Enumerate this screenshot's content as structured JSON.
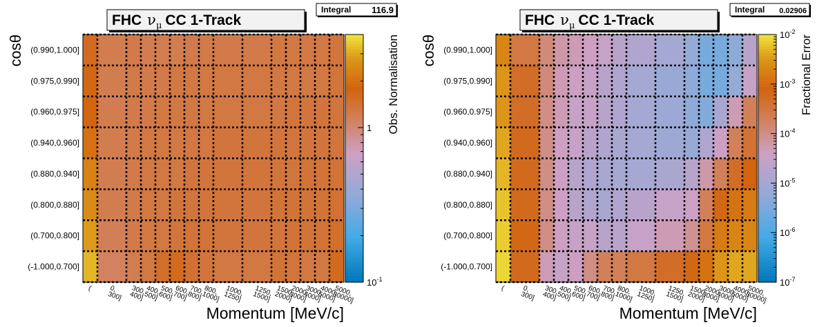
{
  "chart_data": [
    {
      "type": "heatmap",
      "title": "FHC",
      "title_symbol": "ν",
      "title_sub": "μ",
      "title_rest": "CC 1-Track",
      "stats_label": "Integral",
      "stats_value": "116.9",
      "xlabel": "Momentum [MeV/c]",
      "ylabel": "cosθ",
      "zlabel": "Obs. Normalisation",
      "zscale": "log",
      "zlim": [
        0.1,
        4
      ],
      "zticks": [
        {
          "label": "1",
          "value": 1
        },
        {
          "label": "10",
          "sup": "-1",
          "value": 0.1
        }
      ],
      "x_categories": [
        "(",
        "0, 300]",
        "300, 400]",
        "400, 500]",
        "500, 600]",
        "600, 700]",
        "700, 800]",
        "800, 1000]",
        "1000, 1250]",
        "1250, 1500]",
        "1500, 2000]",
        "2000, 3000]",
        "3000, 4000]",
        "4000, 5000]",
        "5000, 30000]"
      ],
      "x_labels": [
        [
          "("
        ],
        [
          "0,",
          "300]"
        ],
        [
          "300,",
          "400]"
        ],
        [
          "400,",
          "500]"
        ],
        [
          "500,",
          "600]"
        ],
        [
          "600,",
          "700]"
        ],
        [
          "700,",
          "800]"
        ],
        [
          "800,",
          "1000]"
        ],
        [
          "1000,",
          "1250]"
        ],
        [
          "1250,",
          "1500]"
        ],
        [
          "1500,",
          "2000]"
        ],
        [
          "2000,",
          "3000]"
        ],
        [
          "3000,",
          "4000]"
        ],
        [
          "4000,",
          "5000]"
        ],
        [
          "5000,",
          "30000]"
        ]
      ],
      "x_edges": [
        0,
        1,
        3,
        4,
        5,
        6,
        7,
        8,
        9,
        11,
        13,
        14,
        15,
        16,
        17,
        18
      ],
      "y_categories": [
        "(0.990,1.000]",
        "(0.975,0.990]",
        "(0.960,0.975]",
        "(0.940,0.960]",
        "(0.880,0.940]",
        "(0.800,0.880]",
        "(0.700,0.800]",
        "(-1.000,0.700]"
      ],
      "values": [
        [
          1.6,
          1.2,
          1.25,
          1.2,
          1.2,
          1.2,
          1.25,
          1.25,
          1.25,
          1.25,
          1.3,
          1.3,
          1.3,
          1.3,
          1.35
        ],
        [
          1.7,
          1.2,
          1.25,
          1.25,
          1.25,
          1.3,
          1.3,
          1.3,
          1.3,
          1.3,
          1.3,
          1.3,
          1.3,
          1.3,
          1.35
        ],
        [
          1.8,
          1.2,
          1.25,
          1.25,
          1.3,
          1.3,
          1.3,
          1.3,
          1.3,
          1.3,
          1.3,
          1.35,
          1.35,
          1.35,
          1.35
        ],
        [
          2.0,
          1.2,
          1.25,
          1.3,
          1.3,
          1.3,
          1.3,
          1.3,
          1.35,
          1.35,
          1.35,
          1.35,
          1.35,
          1.35,
          1.35
        ],
        [
          2.3,
          1.2,
          1.25,
          1.3,
          1.3,
          1.3,
          1.35,
          1.35,
          1.35,
          1.35,
          1.35,
          1.35,
          1.4,
          1.4,
          1.4
        ],
        [
          2.5,
          1.2,
          1.25,
          1.3,
          1.3,
          1.35,
          1.35,
          1.35,
          1.35,
          1.35,
          1.4,
          1.4,
          1.4,
          1.4,
          1.45
        ],
        [
          2.8,
          1.15,
          1.25,
          1.3,
          1.3,
          1.35,
          1.4,
          1.4,
          1.35,
          1.35,
          1.35,
          1.4,
          1.4,
          1.4,
          1.5
        ],
        [
          3.2,
          1.1,
          1.2,
          1.3,
          1.5,
          1.6,
          1.45,
          1.35,
          1.3,
          1.3,
          1.4,
          1.35,
          1.3,
          1.3,
          1.6
        ]
      ]
    },
    {
      "type": "heatmap",
      "title": "FHC",
      "title_symbol": "ν",
      "title_sub": "μ",
      "title_rest": "CC 1-Track",
      "stats_label": "Integral",
      "stats_value": "0.02906",
      "xlabel": "Momentum [MeV/c]",
      "ylabel": "cosθ",
      "zlabel": "Fractional Error",
      "zscale": "log",
      "zlim": [
        1e-07,
        0.01
      ],
      "zticks": [
        {
          "label": "10",
          "sup": "-2",
          "value": 0.01
        },
        {
          "label": "10",
          "sup": "-3",
          "value": 0.001
        },
        {
          "label": "10",
          "sup": "-4",
          "value": 0.0001
        },
        {
          "label": "10",
          "sup": "-5",
          "value": 1e-05
        },
        {
          "label": "10",
          "sup": "-6",
          "value": 1e-06
        },
        {
          "label": "10",
          "sup": "-7",
          "value": 1e-07
        }
      ],
      "x_categories": [
        "(",
        "0, 300]",
        "300, 400]",
        "400, 500]",
        "500, 600]",
        "600, 700]",
        "700, 800]",
        "800, 1000]",
        "1000, 1250]",
        "1250, 1500]",
        "1500, 2000]",
        "2000, 3000]",
        "3000, 4000]",
        "4000, 5000]",
        "5000, 30000]"
      ],
      "x_labels": [
        [
          "("
        ],
        [
          "0,",
          "300]"
        ],
        [
          "300,",
          "400]"
        ],
        [
          "400,",
          "500]"
        ],
        [
          "500,",
          "600]"
        ],
        [
          "600,",
          "700]"
        ],
        [
          "700,",
          "800]"
        ],
        [
          "800,",
          "1000]"
        ],
        [
          "1000,",
          "1250]"
        ],
        [
          "1250,",
          "1500]"
        ],
        [
          "1500,",
          "2000]"
        ],
        [
          "2000,",
          "3000]"
        ],
        [
          "3000,",
          "4000]"
        ],
        [
          "4000,",
          "5000]"
        ],
        [
          "5000,",
          "30000]"
        ]
      ],
      "x_edges": [
        0,
        1,
        3,
        4,
        5,
        6,
        7,
        8,
        9,
        11,
        13,
        14,
        15,
        16,
        17,
        18
      ],
      "y_categories": [
        "(0.990,1.000]",
        "(0.975,0.990]",
        "(0.960,0.975]",
        "(0.940,0.960]",
        "(0.880,0.940]",
        "(0.800,0.880]",
        "(0.700,0.800]",
        "(-1.000,0.700]"
      ],
      "values": [
        [
          0.002,
          0.0003,
          0.00012,
          6e-05,
          5e-05,
          4e-05,
          3e-05,
          2e-05,
          1.5e-05,
          1e-05,
          6e-06,
          3e-06,
          3e-06,
          5e-06,
          2e-05
        ],
        [
          0.003,
          0.0005,
          0.00012,
          5e-05,
          4e-05,
          3e-05,
          2e-05,
          1.5e-05,
          1e-05,
          7e-06,
          5e-06,
          3e-06,
          3e-06,
          6e-06,
          3e-05
        ],
        [
          0.003,
          0.0005,
          0.0001,
          5e-05,
          3e-05,
          3e-05,
          2e-05,
          1.5e-05,
          1e-05,
          8e-06,
          5e-06,
          4e-06,
          1.2e-05,
          5e-05,
          0.0002
        ],
        [
          0.004,
          0.0006,
          0.0001,
          4e-05,
          3e-05,
          2e-05,
          1.5e-05,
          1.2e-05,
          1e-05,
          8e-06,
          7e-06,
          1.5e-05,
          4e-05,
          0.0002,
          0.0004
        ],
        [
          0.005,
          0.0006,
          0.0001,
          4e-05,
          2e-05,
          1.5e-05,
          1.2e-05,
          1e-05,
          1e-05,
          1.2e-05,
          2e-05,
          6e-05,
          0.0002,
          0.0005,
          0.0008
        ],
        [
          0.006,
          0.0006,
          0.0001,
          4e-05,
          2e-05,
          1.5e-05,
          1.2e-05,
          1.5e-05,
          2e-05,
          3e-05,
          4e-05,
          0.0002,
          0.0007,
          0.0012,
          0.0015
        ],
        [
          0.007,
          0.0007,
          0.0001,
          4e-05,
          3e-05,
          3e-05,
          2e-05,
          2e-05,
          3e-05,
          5e-05,
          8e-05,
          0.0003,
          0.0015,
          0.002,
          0.002
        ],
        [
          0.008,
          0.0006,
          5e-05,
          3e-05,
          4e-05,
          0.0001,
          0.0002,
          0.0002,
          0.0003,
          0.0005,
          0.0007,
          0.0012,
          0.003,
          0.004,
          0.004
        ]
      ]
    }
  ]
}
